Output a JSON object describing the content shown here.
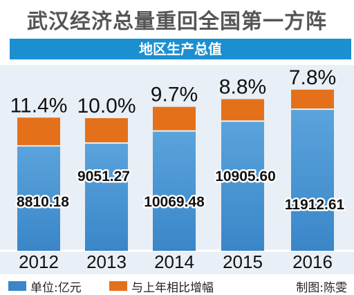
{
  "title": "武汉经济总量重回全国第一方阵",
  "banner": "地区生产总值",
  "colors": {
    "gdp": "#3a86c8",
    "gdp_top": "#5aa3dc",
    "growth": "#e4711a",
    "banner": "#1b8fd0",
    "background": "#e9eff6"
  },
  "legend": {
    "gdp_label": "单位:亿元",
    "growth_label": "与上年相比增幅",
    "credit": "制图:陈雯"
  },
  "chart_data": {
    "type": "bar",
    "categories": [
      "2012",
      "2013",
      "2014",
      "2015",
      "2016"
    ],
    "series": [
      {
        "name": "单位:亿元",
        "values": [
          8810.18,
          9051.27,
          10069.48,
          10905.6,
          11912.61
        ],
        "labels": [
          "8810.18",
          "9051.27",
          "10069.48",
          "10905.60",
          "11912.61"
        ]
      },
      {
        "name": "与上年相比增幅",
        "values": [
          11.4,
          10.0,
          9.7,
          8.8,
          7.8
        ],
        "labels": [
          "11.4%",
          "10.0%",
          "9.7%",
          "8.8%",
          "7.8%"
        ]
      }
    ],
    "stacked": true
  }
}
